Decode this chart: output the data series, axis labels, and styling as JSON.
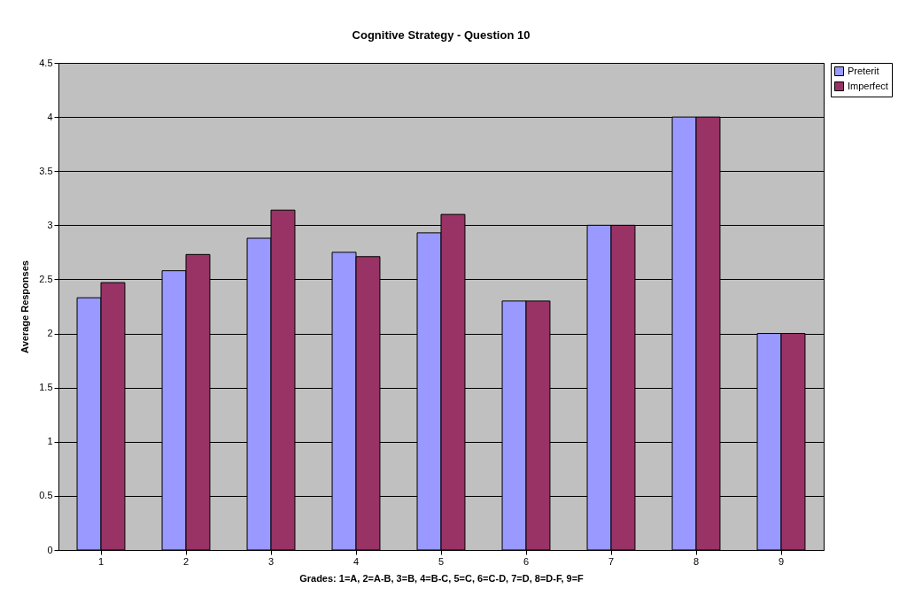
{
  "chart_data": {
    "type": "bar",
    "title": "Cognitive Strategy - Question 10",
    "xlabel": "Grades: 1=A, 2=A-B, 3=B, 4=B-C, 5=C, 6=C-D, 7=D, 8=D-F, 9=F",
    "ylabel": "Average Responses",
    "categories": [
      "1",
      "2",
      "3",
      "4",
      "5",
      "6",
      "7",
      "8",
      "9"
    ],
    "series": [
      {
        "name": "Preterit",
        "color": "#9999ff",
        "values": [
          2.33,
          2.58,
          2.88,
          2.75,
          2.93,
          2.3,
          3,
          4,
          2
        ]
      },
      {
        "name": "Imperfect",
        "color": "#993366",
        "values": [
          2.47,
          2.73,
          3.14,
          2.71,
          3.1,
          2.3,
          3,
          4,
          2
        ]
      }
    ],
    "ylim": [
      0,
      4.5
    ],
    "yticks": [
      0,
      0.5,
      1,
      1.5,
      2,
      2.5,
      3,
      3.5,
      4,
      4.5
    ],
    "grid": "y",
    "legend": "right"
  }
}
